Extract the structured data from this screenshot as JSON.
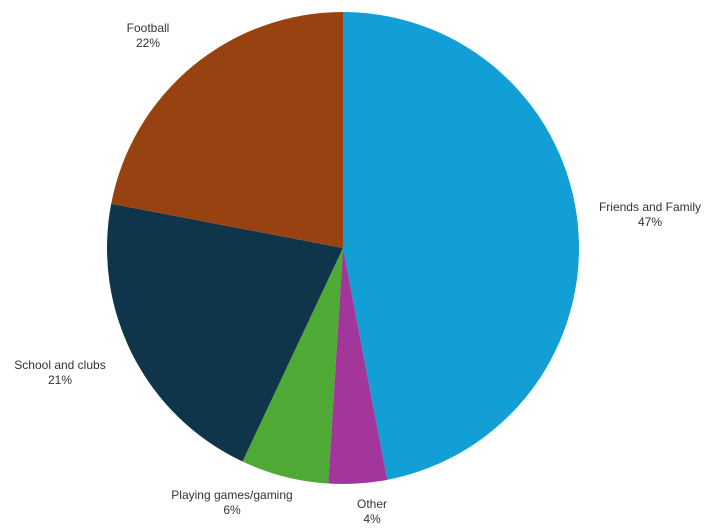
{
  "chart_data": {
    "type": "pie",
    "start_angle_deg": 0,
    "direction": "clockwise",
    "slices": [
      {
        "label": "Friends and Family",
        "value": 47,
        "value_label": "47%",
        "color": "#129fd6"
      },
      {
        "label": "Other",
        "value": 4,
        "value_label": "4%",
        "color": "#a3369a"
      },
      {
        "label": "Playing games/gaming",
        "value": 6,
        "value_label": "6%",
        "color": "#4ea935"
      },
      {
        "label": "School and clubs",
        "value": 21,
        "value_label": "21%",
        "color": "#0f354a"
      },
      {
        "label": "Football",
        "value": 22,
        "value_label": "22%",
        "color": "#974210"
      }
    ],
    "legend": "none",
    "data_labels": "outside"
  }
}
